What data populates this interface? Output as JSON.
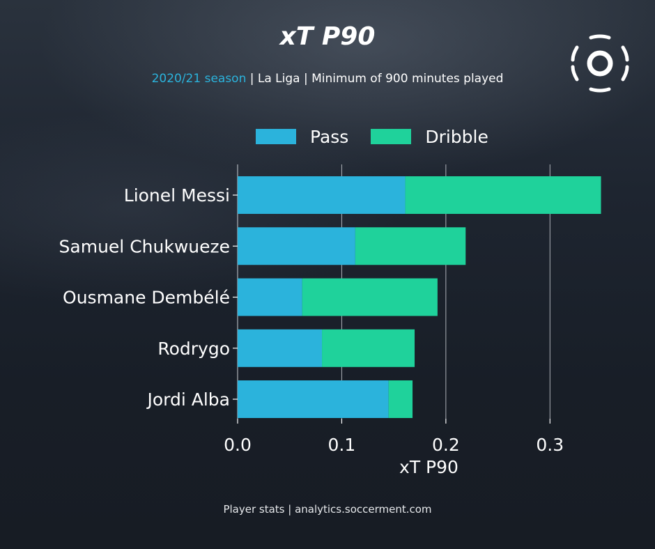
{
  "title": "xT P90",
  "subtitle": {
    "season": "2020/21 season",
    "rest": " | La Liga | Minimum of 900 minutes played"
  },
  "footer": "Player stats | analytics.soccerment.com",
  "colors": {
    "pass": "#2bb3dc",
    "dribble": "#1fd29b",
    "background": "#1a212c",
    "grid": "#c8ccd2"
  },
  "chart_data": {
    "type": "bar",
    "orientation": "horizontal",
    "stacked": true,
    "categories": [
      "Lionel Messi",
      "Samuel Chukwueze",
      "Ousmane Dembélé",
      "Rodrygo",
      "Jordi Alba"
    ],
    "series": [
      {
        "name": "Pass",
        "values": [
          0.161,
          0.113,
          0.062,
          0.081,
          0.145
        ]
      },
      {
        "name": "Dribble",
        "values": [
          0.188,
          0.106,
          0.13,
          0.089,
          0.023
        ]
      }
    ],
    "xlabel": "xT P90",
    "xlim": [
      0,
      0.35
    ],
    "xticks": [
      "0.0",
      "0.1",
      "0.2",
      "0.3"
    ],
    "xtick_values": [
      0,
      0.1,
      0.2,
      0.3
    ],
    "grid": "vertical",
    "legend_position": "top"
  }
}
